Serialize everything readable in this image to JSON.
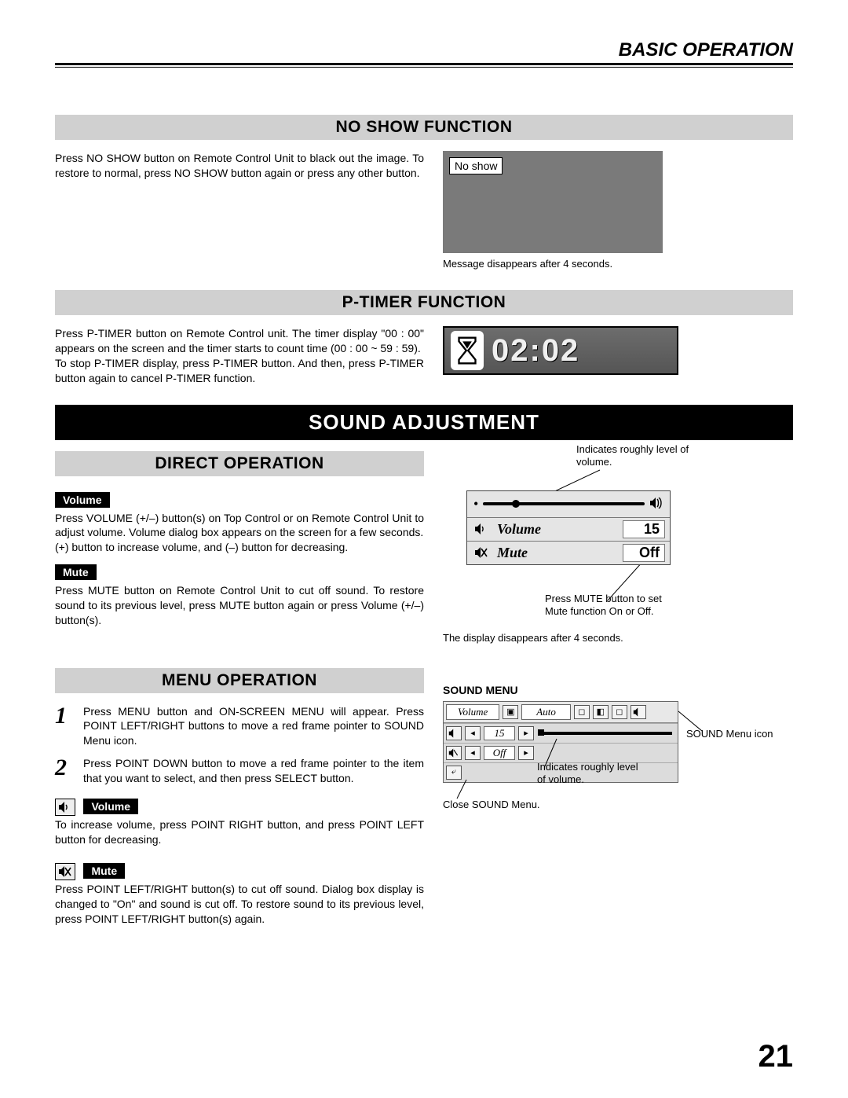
{
  "page": {
    "header": "BASIC OPERATION",
    "number": "21"
  },
  "noshow": {
    "title": "NO SHOW FUNCTION",
    "text": "Press NO SHOW button on Remote Control Unit to black out the image.  To restore to normal, press NO SHOW button again or press any other button.",
    "box_label": "No show",
    "caption": "Message disappears after 4 seconds."
  },
  "ptimer": {
    "title": "P-TIMER FUNCTION",
    "text1": "Press P-TIMER button on Remote Control unit.  The timer display \"00 : 00\" appears on the screen and the timer starts to count time (00 : 00 ~ 59 : 59).",
    "text2": "To stop P-TIMER display, press P-TIMER button.  And then, press P-TIMER button again to cancel P-TIMER function.",
    "display": "02:02"
  },
  "sound": {
    "band": "SOUND ADJUSTMENT",
    "direct": {
      "title": "DIRECT OPERATION",
      "volume_label": "Volume",
      "volume_text1": "Press VOLUME (+/–) button(s) on Top Control or on Remote Control Unit to adjust volume.  Volume dialog box appears on the screen for a few seconds.",
      "volume_text2": "(+) button to increase volume, and (–) button for decreasing.",
      "mute_label": "Mute",
      "mute_text": "Press MUTE button on Remote Control Unit to cut off sound.  To restore sound to its previous level, press MUTE button again or press Volume (+/–) button(s)."
    },
    "dialog": {
      "annot_top": "Indicates roughly level of volume.",
      "volume_row": "Volume",
      "volume_value": "15",
      "slider_percent": 18,
      "mute_row": "Mute",
      "mute_value": "Off",
      "annot_bottom": "Press MUTE button to set Mute function On or Off.",
      "caption": "The display disappears after 4 seconds."
    },
    "menu": {
      "title": "MENU OPERATION",
      "step1": "Press MENU button and ON-SCREEN MENU will appear.  Press POINT LEFT/RIGHT buttons to move a red frame pointer to SOUND Menu icon.",
      "step2": "Press POINT DOWN button to move a red frame pointer to the item that you want to select, and then press SELECT button.",
      "volume_label": "Volume",
      "volume_help": "To increase volume, press POINT RIGHT button, and press POINT LEFT button for decreasing.",
      "mute_label": "Mute",
      "mute_help": "Press POINT LEFT/RIGHT button(s) to cut off sound.  Dialog box display is changed to \"On\" and sound is cut off.  To restore sound to its previous level, press POINT LEFT/RIGHT button(s) again."
    },
    "sound_menu_panel": {
      "heading": "SOUND MENU",
      "dropdown": "Volume",
      "auto": "Auto",
      "vol_value": "15",
      "mute_value": "Off",
      "annot_icon": "SOUND Menu icon",
      "annot_level": "Indicates roughly level of volume.",
      "annot_close": "Close SOUND Menu."
    }
  },
  "colors": {
    "gray_bar": "#d0d0d0",
    "dark_box": "#7a7a7a",
    "panel": "#e5e5e5"
  }
}
